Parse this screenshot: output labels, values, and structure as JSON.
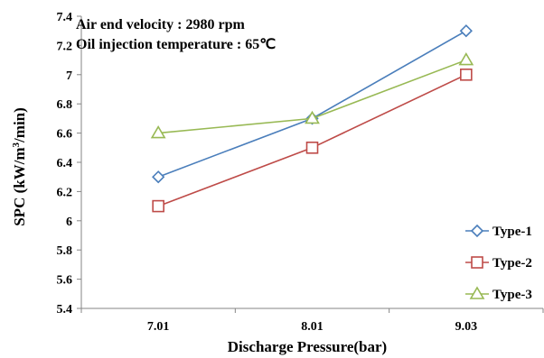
{
  "chart_data": {
    "type": "line",
    "x": [
      "7.01",
      "8.01",
      "9.03"
    ],
    "xlabel": "Discharge Pressure(bar)",
    "ylabel_parts": [
      "SPC (kW/m",
      "3",
      "/min)"
    ],
    "ylim": [
      5.4,
      7.4
    ],
    "yticks": [
      "5.4",
      "5.6",
      "5.8",
      "6",
      "6.2",
      "6.4",
      "6.6",
      "6.8",
      "7",
      "7.2",
      "7.4"
    ],
    "grid": false,
    "legend_position": "bottom-right",
    "annotations": [
      "Air end velocity : 2980 rpm",
      "Oil injection temperature : 65℃"
    ],
    "series": [
      {
        "name": "Type-1",
        "values": [
          6.3,
          6.7,
          7.3
        ],
        "color": "#4a7ebb",
        "marker": "diamond"
      },
      {
        "name": "Type-2",
        "values": [
          6.1,
          6.5,
          7.0
        ],
        "color": "#be4b48",
        "marker": "square"
      },
      {
        "name": "Type-3",
        "values": [
          6.6,
          6.7,
          7.1
        ],
        "color": "#98b954",
        "marker": "triangle"
      }
    ]
  }
}
